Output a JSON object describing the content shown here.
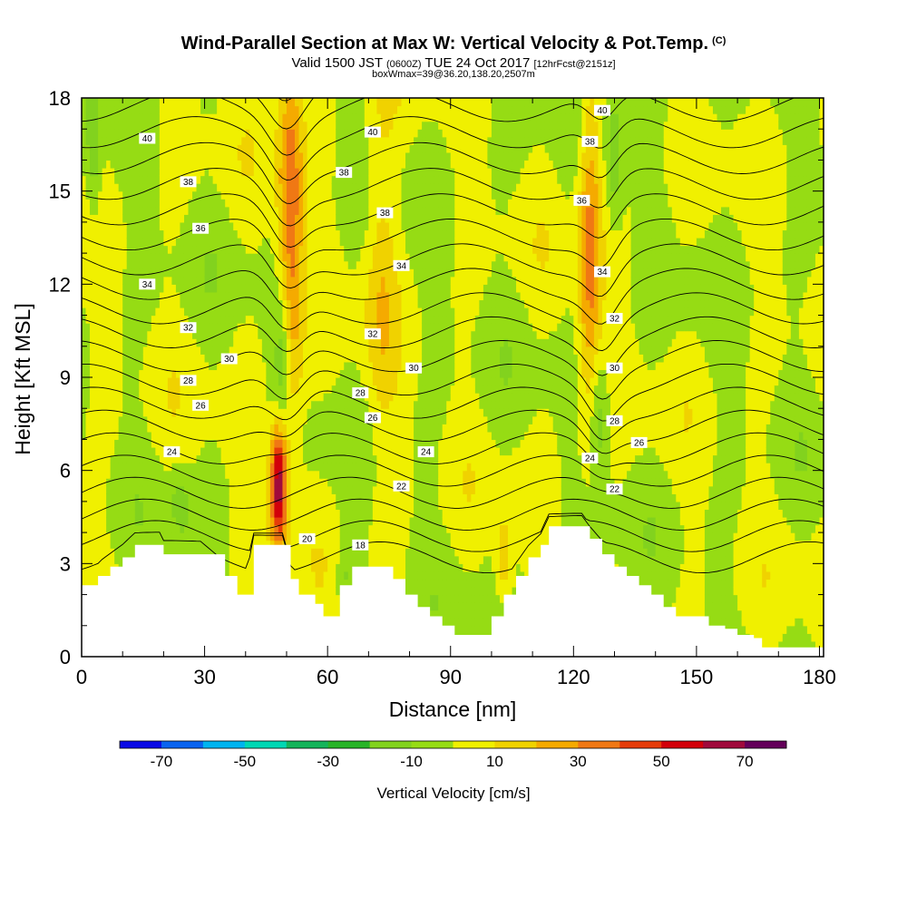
{
  "header": {
    "title": "Wind-Parallel Section at Max W: Vertical Velocity & Pot.Temp.",
    "title_units": "(C)",
    "subtitle_main": "Valid 1500 JST",
    "subtitle_z": "(0600Z)",
    "subtitle_date": "TUE 24 Oct 2017",
    "subtitle_fcst": "[12hrFcst@2151z]",
    "subtitle2": "boxWmax=39@36.20,138.20,2507m"
  },
  "chart_data": {
    "type": "heatmap",
    "xlabel": "Distance [nm]",
    "ylabel": "Height [Kft MSL]",
    "xlim": [
      0,
      181
    ],
    "ylim": [
      0,
      18
    ],
    "x_ticks": [
      0,
      30,
      60,
      90,
      120,
      150,
      180
    ],
    "y_ticks": [
      0,
      3,
      6,
      9,
      12,
      15,
      18
    ],
    "colorbar": {
      "title": "Vertical Velocity [cm/s]",
      "boundaries": [
        -80,
        -70,
        -60,
        -50,
        -40,
        -30,
        -20,
        -10,
        0,
        10,
        20,
        30,
        40,
        50,
        60,
        70,
        80
      ],
      "colors": [
        "#0a0ae6",
        "#0a64f0",
        "#00b4f0",
        "#00d7b4",
        "#14b45a",
        "#28b428",
        "#82d21e",
        "#96dc14",
        "#f0f000",
        "#f0d200",
        "#f5aa00",
        "#f07814",
        "#e63c0a",
        "#d2000a",
        "#a00a3c",
        "#64005a"
      ],
      "labels": [
        "-70",
        "-50",
        "-30",
        "-10",
        "10",
        "30",
        "50",
        "70"
      ]
    },
    "terrain": [
      [
        0,
        2.3
      ],
      [
        4,
        2.6
      ],
      [
        7,
        2.9
      ],
      [
        10,
        3.2
      ],
      [
        13,
        3.6
      ],
      [
        19,
        3.6
      ],
      [
        20,
        3.3
      ],
      [
        29,
        3.3
      ],
      [
        35,
        2.6
      ],
      [
        38,
        2.0
      ],
      [
        40,
        2.0
      ],
      [
        42,
        3.6
      ],
      [
        49,
        3.6
      ],
      [
        51,
        2.5
      ],
      [
        53,
        2.0
      ],
      [
        55,
        2.0
      ],
      [
        57,
        1.7
      ],
      [
        59,
        1.3
      ],
      [
        61,
        1.3
      ],
      [
        63,
        2.3
      ],
      [
        66,
        2.9
      ],
      [
        73,
        2.9
      ],
      [
        76,
        2.5
      ],
      [
        79,
        2.0
      ],
      [
        82,
        1.6
      ],
      [
        85,
        1.3
      ],
      [
        88,
        1.0
      ],
      [
        91,
        0.7
      ],
      [
        97,
        0.7
      ],
      [
        100,
        1.3
      ],
      [
        103,
        2.0
      ],
      [
        106,
        2.6
      ],
      [
        109,
        3.2
      ],
      [
        112,
        3.6
      ],
      [
        114,
        4.2
      ],
      [
        122,
        4.2
      ],
      [
        124,
        3.8
      ],
      [
        127,
        3.3
      ],
      [
        130,
        2.9
      ],
      [
        133,
        2.6
      ],
      [
        136,
        2.3
      ],
      [
        139,
        2.0
      ],
      [
        142,
        1.6
      ],
      [
        145,
        1.3
      ],
      [
        150,
        1.3
      ],
      [
        153,
        1.0
      ],
      [
        157,
        0.9
      ],
      [
        160,
        0.7
      ],
      [
        164,
        0.6
      ],
      [
        166,
        0.3
      ],
      [
        181,
        0.3
      ]
    ],
    "updrafts": [
      {
        "x": 48,
        "y": 5.6,
        "amp": 68,
        "sx": 1.4,
        "sy": 1.4
      },
      {
        "x": 51,
        "y": 14.0,
        "amp": 38,
        "sx": 2.2,
        "sy": 5.0
      },
      {
        "x": 124,
        "y": 13.0,
        "amp": 34,
        "sx": 2.0,
        "sy": 4.5
      },
      {
        "x": 73,
        "y": 12.5,
        "amp": 15,
        "sx": 2.8,
        "sy": 4.5
      },
      {
        "x": 103,
        "y": 3.0,
        "amp": 20,
        "sx": 1.5,
        "sy": 1.0
      }
    ],
    "downdrafts": [
      {
        "x": 49,
        "y": 9.5,
        "amp": -24,
        "sx": 1.5,
        "sy": 1.8
      },
      {
        "x": 126,
        "y": 7.8,
        "amp": -22,
        "sx": 1.8,
        "sy": 1.5
      },
      {
        "x": 130,
        "y": 16.0,
        "amp": -16,
        "sx": 1.5,
        "sy": 1.5
      },
      {
        "x": 3,
        "y": 16.2,
        "amp": -15,
        "sx": 1.3,
        "sy": 2.0
      },
      {
        "x": 24,
        "y": 5.0,
        "amp": -14,
        "sx": 1.6,
        "sy": 0.8
      },
      {
        "x": 64,
        "y": 2.6,
        "amp": -14,
        "sx": 1.2,
        "sy": 0.8
      }
    ],
    "theta_levels": [
      18,
      19,
      20,
      21,
      22,
      23,
      24,
      25,
      26,
      27,
      28,
      29,
      30,
      31,
      32,
      33,
      34,
      35,
      36,
      37,
      38,
      39,
      40
    ],
    "theta_labels": [
      {
        "text": "40",
        "x": 16,
        "y": 16.7
      },
      {
        "text": "38",
        "x": 26,
        "y": 15.3
      },
      {
        "text": "36",
        "x": 29,
        "y": 13.8
      },
      {
        "text": "34",
        "x": 16,
        "y": 12.0
      },
      {
        "text": "32",
        "x": 26,
        "y": 10.6
      },
      {
        "text": "30",
        "x": 36,
        "y": 9.6
      },
      {
        "text": "28",
        "x": 26,
        "y": 8.9
      },
      {
        "text": "26",
        "x": 29,
        "y": 8.1
      },
      {
        "text": "24",
        "x": 22,
        "y": 6.6
      },
      {
        "text": "40",
        "x": 71,
        "y": 16.9
      },
      {
        "text": "38",
        "x": 64,
        "y": 15.6
      },
      {
        "text": "38",
        "x": 74,
        "y": 14.3
      },
      {
        "text": "34",
        "x": 78,
        "y": 12.6
      },
      {
        "text": "32",
        "x": 71,
        "y": 10.4
      },
      {
        "text": "30",
        "x": 81,
        "y": 9.3
      },
      {
        "text": "28",
        "x": 68,
        "y": 8.5
      },
      {
        "text": "26",
        "x": 71,
        "y": 7.7
      },
      {
        "text": "24",
        "x": 84,
        "y": 6.6
      },
      {
        "text": "22",
        "x": 78,
        "y": 5.5
      },
      {
        "text": "20",
        "x": 55,
        "y": 3.8
      },
      {
        "text": "18",
        "x": 68,
        "y": 3.6
      },
      {
        "text": "40",
        "x": 127,
        "y": 17.6
      },
      {
        "text": "38",
        "x": 124,
        "y": 16.6
      },
      {
        "text": "36",
        "x": 122,
        "y": 14.7
      },
      {
        "text": "34",
        "x": 127,
        "y": 12.4
      },
      {
        "text": "32",
        "x": 130,
        "y": 10.9
      },
      {
        "text": "30",
        "x": 130,
        "y": 9.3
      },
      {
        "text": "28",
        "x": 130,
        "y": 7.6
      },
      {
        "text": "26",
        "x": 136,
        "y": 6.9
      },
      {
        "text": "24",
        "x": 124,
        "y": 6.4
      },
      {
        "text": "22",
        "x": 130,
        "y": 5.4
      }
    ]
  }
}
